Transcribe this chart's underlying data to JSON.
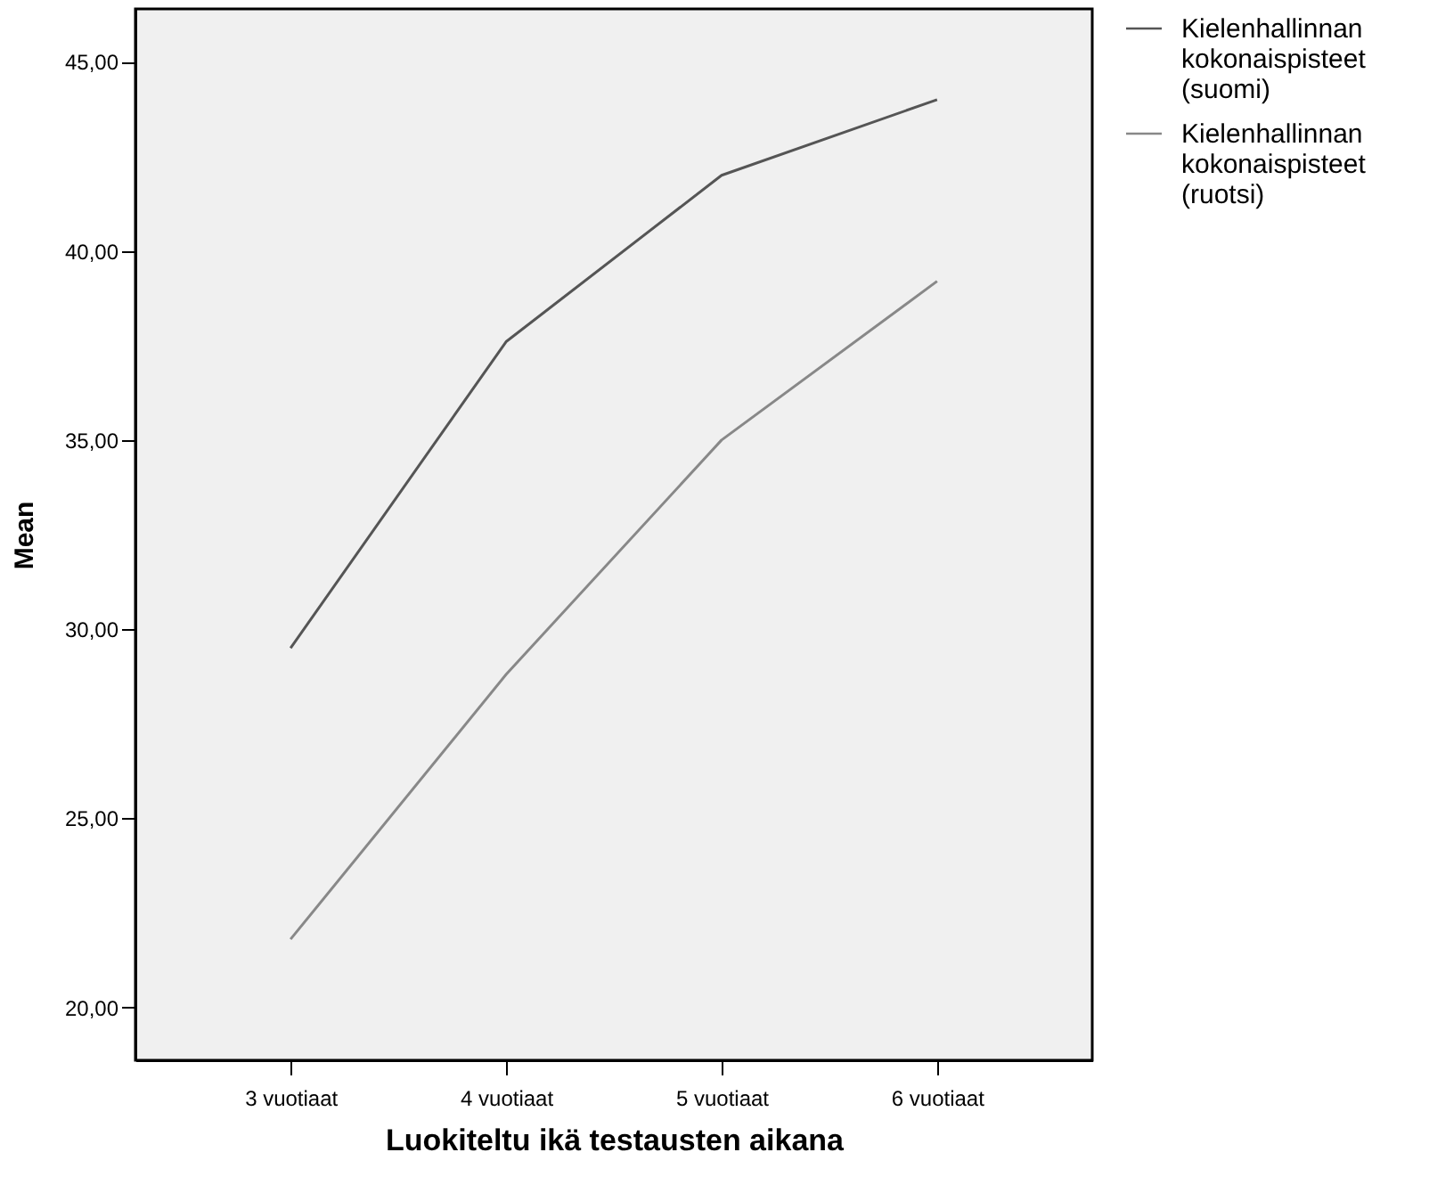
{
  "chart_data": {
    "type": "line",
    "xlabel": "Luokiteltu ikä testausten aikana",
    "ylabel": "Mean",
    "categories": [
      "3 vuotiaat",
      "4 vuotiaat",
      "5 vuotiaat",
      "6 vuotiaat"
    ],
    "series": [
      {
        "name": "Kielenhallinnan kokonaispisteet (suomi)",
        "color": "#555555",
        "values": [
          29.5,
          37.6,
          42.0,
          44.0
        ]
      },
      {
        "name": "Kielenhallinnan kokonaispisteet (ruotsi)",
        "color": "#888888",
        "values": [
          21.8,
          28.8,
          35.0,
          39.2
        ]
      }
    ],
    "ylim": [
      18.6,
      46.4
    ],
    "yticks": [
      {
        "value": 20,
        "label": "20,00"
      },
      {
        "value": 25,
        "label": "25,00"
      },
      {
        "value": 30,
        "label": "30,00"
      },
      {
        "value": 35,
        "label": "35,00"
      },
      {
        "value": 40,
        "label": "40,00"
      },
      {
        "value": 45,
        "label": "45,00"
      }
    ],
    "grid": false,
    "legend": "top right",
    "marker": "none",
    "line_style": "solid"
  }
}
